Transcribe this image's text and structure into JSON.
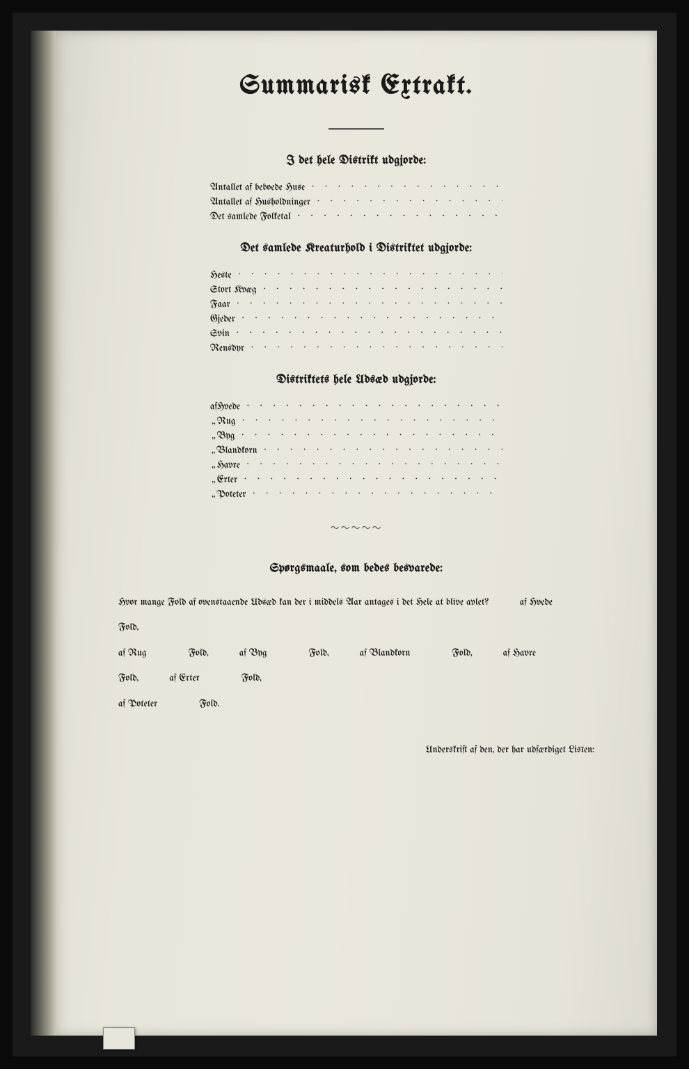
{
  "title": "Summarisk Extrakt.",
  "section1": {
    "heading": "I det hele Distrikt udgjorde:",
    "items": [
      "Antallet af beboede Huse",
      "Antallet af Husholdninger",
      "Det samlede Folketal"
    ]
  },
  "section2": {
    "heading": "Det samlede Kreaturhold i Distriktet udgjorde:",
    "items": [
      "Heste",
      "Stort Kvæg",
      "Faar",
      "Gjeder",
      "Svin",
      "Rensdyr"
    ]
  },
  "section3": {
    "heading": "Distriktets hele Udsæd udgjorde:",
    "prefix_first": "af",
    "prefix_rest": "„",
    "items": [
      "Hvede",
      "Rug",
      "Byg",
      "Blandkorn",
      "Havre",
      "Erter",
      "Poteter"
    ]
  },
  "section4": {
    "heading": "Spørgsmaale, som bedes besvarede:",
    "q_lead": "Hvor mange Fold af ovenstaaende Udsæd kan der i middels Aar antages i det Hele at blive avlet?",
    "pairs": [
      {
        "label": "af Hvede",
        "unit": "Fold,"
      },
      {
        "label": "af Rug",
        "unit": "Fold,"
      },
      {
        "label": "af Byg",
        "unit": "Fold,"
      },
      {
        "label": "af Blandkorn",
        "unit": "Fold,"
      },
      {
        "label": "af Havre",
        "unit": "Fold,"
      },
      {
        "label": "af Erter",
        "unit": "Fold,"
      },
      {
        "label": "af Poteter",
        "unit": "Fold."
      }
    ]
  },
  "signature": "Underskrift af den, der har udfærdiget Listen:",
  "colors": {
    "page_bg": "#eae7dc",
    "ink": "#1a1a1a",
    "frame": "#0a0a0a"
  },
  "typography": {
    "title_pt": 38,
    "heading_pt": 17,
    "body_pt": 14
  }
}
